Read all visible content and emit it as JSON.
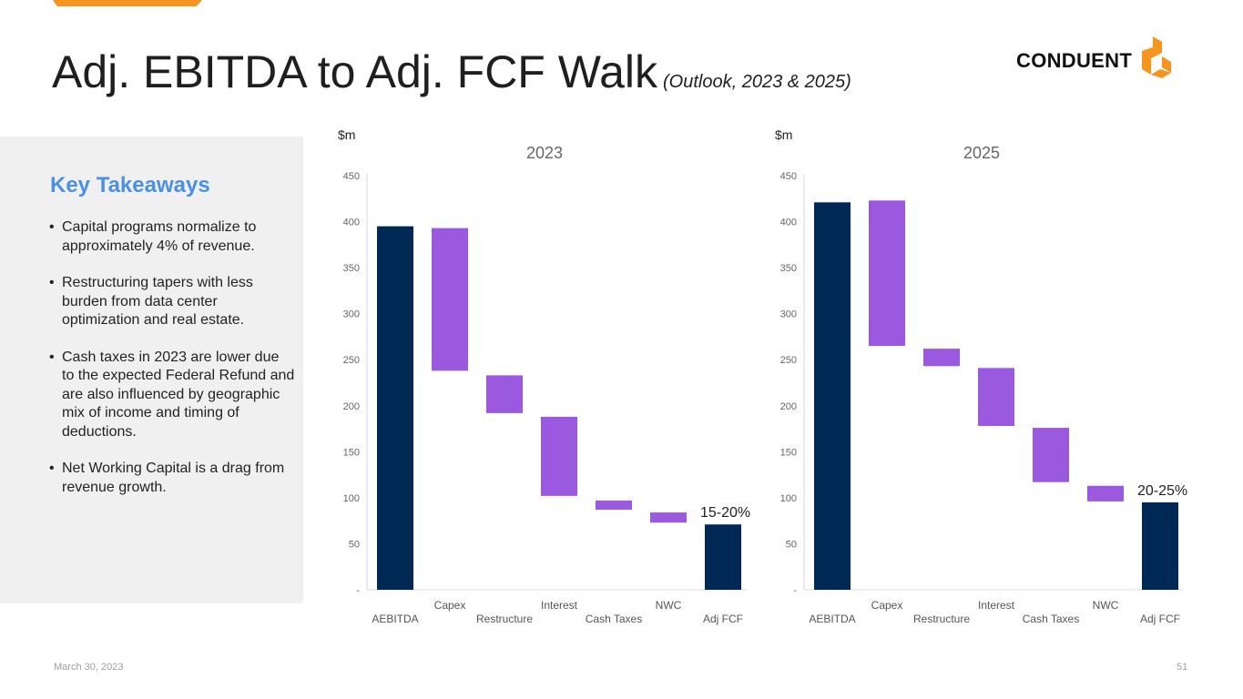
{
  "header": {
    "title": "Adj. EBITDA to Adj. FCF Walk",
    "subtitle": "(Outlook, 2023 & 2025)"
  },
  "logo": {
    "text": "CONDUENT"
  },
  "colors": {
    "accent": "#f7941d",
    "navy": "#002855",
    "purple": "#9b59e0",
    "takeaway_blue": "#4a90e8"
  },
  "takeaways": {
    "title": "Key Takeaways",
    "bullets": [
      "Capital programs normalize to approximately 4% of revenue.",
      "Restructuring tapers with less burden from data center optimization and real estate.",
      "Cash taxes in 2023 are lower due to the expected Federal Refund and are also influenced by geographic mix of income and timing of deductions.",
      "Net Working Capital is a drag from revenue growth."
    ]
  },
  "chart_data": [
    {
      "type": "bar",
      "title": "2023",
      "ylabel": "$m",
      "ylim": [
        0,
        450
      ],
      "yticks": [
        "-",
        "50",
        "100",
        "150",
        "200",
        "250",
        "300",
        "350",
        "400",
        "450"
      ],
      "categories": [
        "AEBITDA",
        "Capex",
        "Restructure",
        "Interest",
        "Cash Taxes",
        "NWC",
        "Adj FCF"
      ],
      "bars": [
        {
          "label": "AEBITDA",
          "kind": "total",
          "low": 0,
          "high": 395
        },
        {
          "label": "Capex",
          "kind": "step",
          "low": 238,
          "high": 393
        },
        {
          "label": "Restructure",
          "kind": "step",
          "low": 192,
          "high": 233
        },
        {
          "label": "Interest",
          "kind": "step",
          "low": 102,
          "high": 188
        },
        {
          "label": "Cash Taxes",
          "kind": "step",
          "low": 87,
          "high": 97
        },
        {
          "label": "NWC",
          "kind": "step",
          "low": 73,
          "high": 84
        },
        {
          "label": "Adj FCF",
          "kind": "total",
          "low": 0,
          "high": 71
        }
      ],
      "annotation": "15-20%"
    },
    {
      "type": "bar",
      "title": "2025",
      "ylabel": "$m",
      "ylim": [
        0,
        450
      ],
      "yticks": [
        "-",
        "50",
        "100",
        "150",
        "200",
        "250",
        "300",
        "350",
        "400",
        "450"
      ],
      "categories": [
        "AEBITDA",
        "Capex",
        "Restructure",
        "Interest",
        "Cash Taxes",
        "NWC",
        "Adj FCF"
      ],
      "bars": [
        {
          "label": "AEBITDA",
          "kind": "total",
          "low": 0,
          "high": 421
        },
        {
          "label": "Capex",
          "kind": "step",
          "low": 265,
          "high": 423
        },
        {
          "label": "Restructure",
          "kind": "step",
          "low": 243,
          "high": 262
        },
        {
          "label": "Interest",
          "kind": "step",
          "low": 178,
          "high": 241
        },
        {
          "label": "Cash Taxes",
          "kind": "step",
          "low": 117,
          "high": 176
        },
        {
          "label": "NWC",
          "kind": "step",
          "low": 96,
          "high": 113
        },
        {
          "label": "Adj FCF",
          "kind": "total",
          "low": 0,
          "high": 95
        }
      ],
      "annotation": "20-25%"
    }
  ],
  "footer": {
    "date": "March 30, 2023",
    "page": "51"
  }
}
